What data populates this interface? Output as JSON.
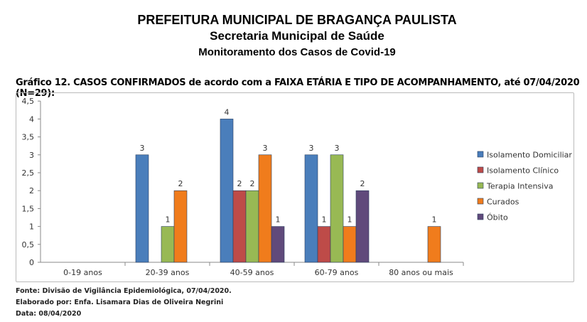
{
  "header": {
    "line1": "PREFEITURA MUNICIPAL DE BRAGANÇA PAULISTA",
    "line2": "Secretaria Municipal de Saúde",
    "line3": "Monitoramento dos Casos de Covid-19"
  },
  "chart_data": {
    "type": "bar",
    "title": "Gráfico 12. CASOS CONFIRMADOS de acordo com a FAIXA ETÁRIA E TIPO DE ACOMPANHAMENTO, até 07/04/2020 (N=29):",
    "categories": [
      "0-19 anos",
      "20-39 anos",
      "40-59 anos",
      "60-79 anos",
      "80 anos ou mais"
    ],
    "ylim": [
      0,
      4.5
    ],
    "yticks": [
      "0",
      "0,5",
      "1",
      "1,5",
      "2",
      "2,5",
      "3",
      "3,5",
      "4",
      "4,5"
    ],
    "legend_position": "right",
    "series": [
      {
        "name": "Isolamento Domiciliar",
        "color": "#4a7ebb",
        "values": [
          0,
          3,
          4,
          3,
          0
        ]
      },
      {
        "name": "Isolamento Clínico",
        "color": "#be4b48",
        "values": [
          0,
          0,
          2,
          1,
          0
        ]
      },
      {
        "name": "Terapia Intensiva",
        "color": "#98b954",
        "values": [
          0,
          1,
          2,
          3,
          0
        ]
      },
      {
        "name": "Curados",
        "color": "#f07c1c",
        "values": [
          0,
          2,
          3,
          1,
          1
        ]
      },
      {
        "name": "Óbito",
        "color": "#604a7b",
        "values": [
          0,
          0,
          1,
          2,
          0
        ]
      }
    ]
  },
  "footer": {
    "source": "Fonte: Divisão de Vigilância Epidemiológica, 07/04/2020.",
    "author": "Elaborado por: Enfa. Lisamara Dias de Oliveira Negrini",
    "date": "Data: 08/04/2020"
  }
}
